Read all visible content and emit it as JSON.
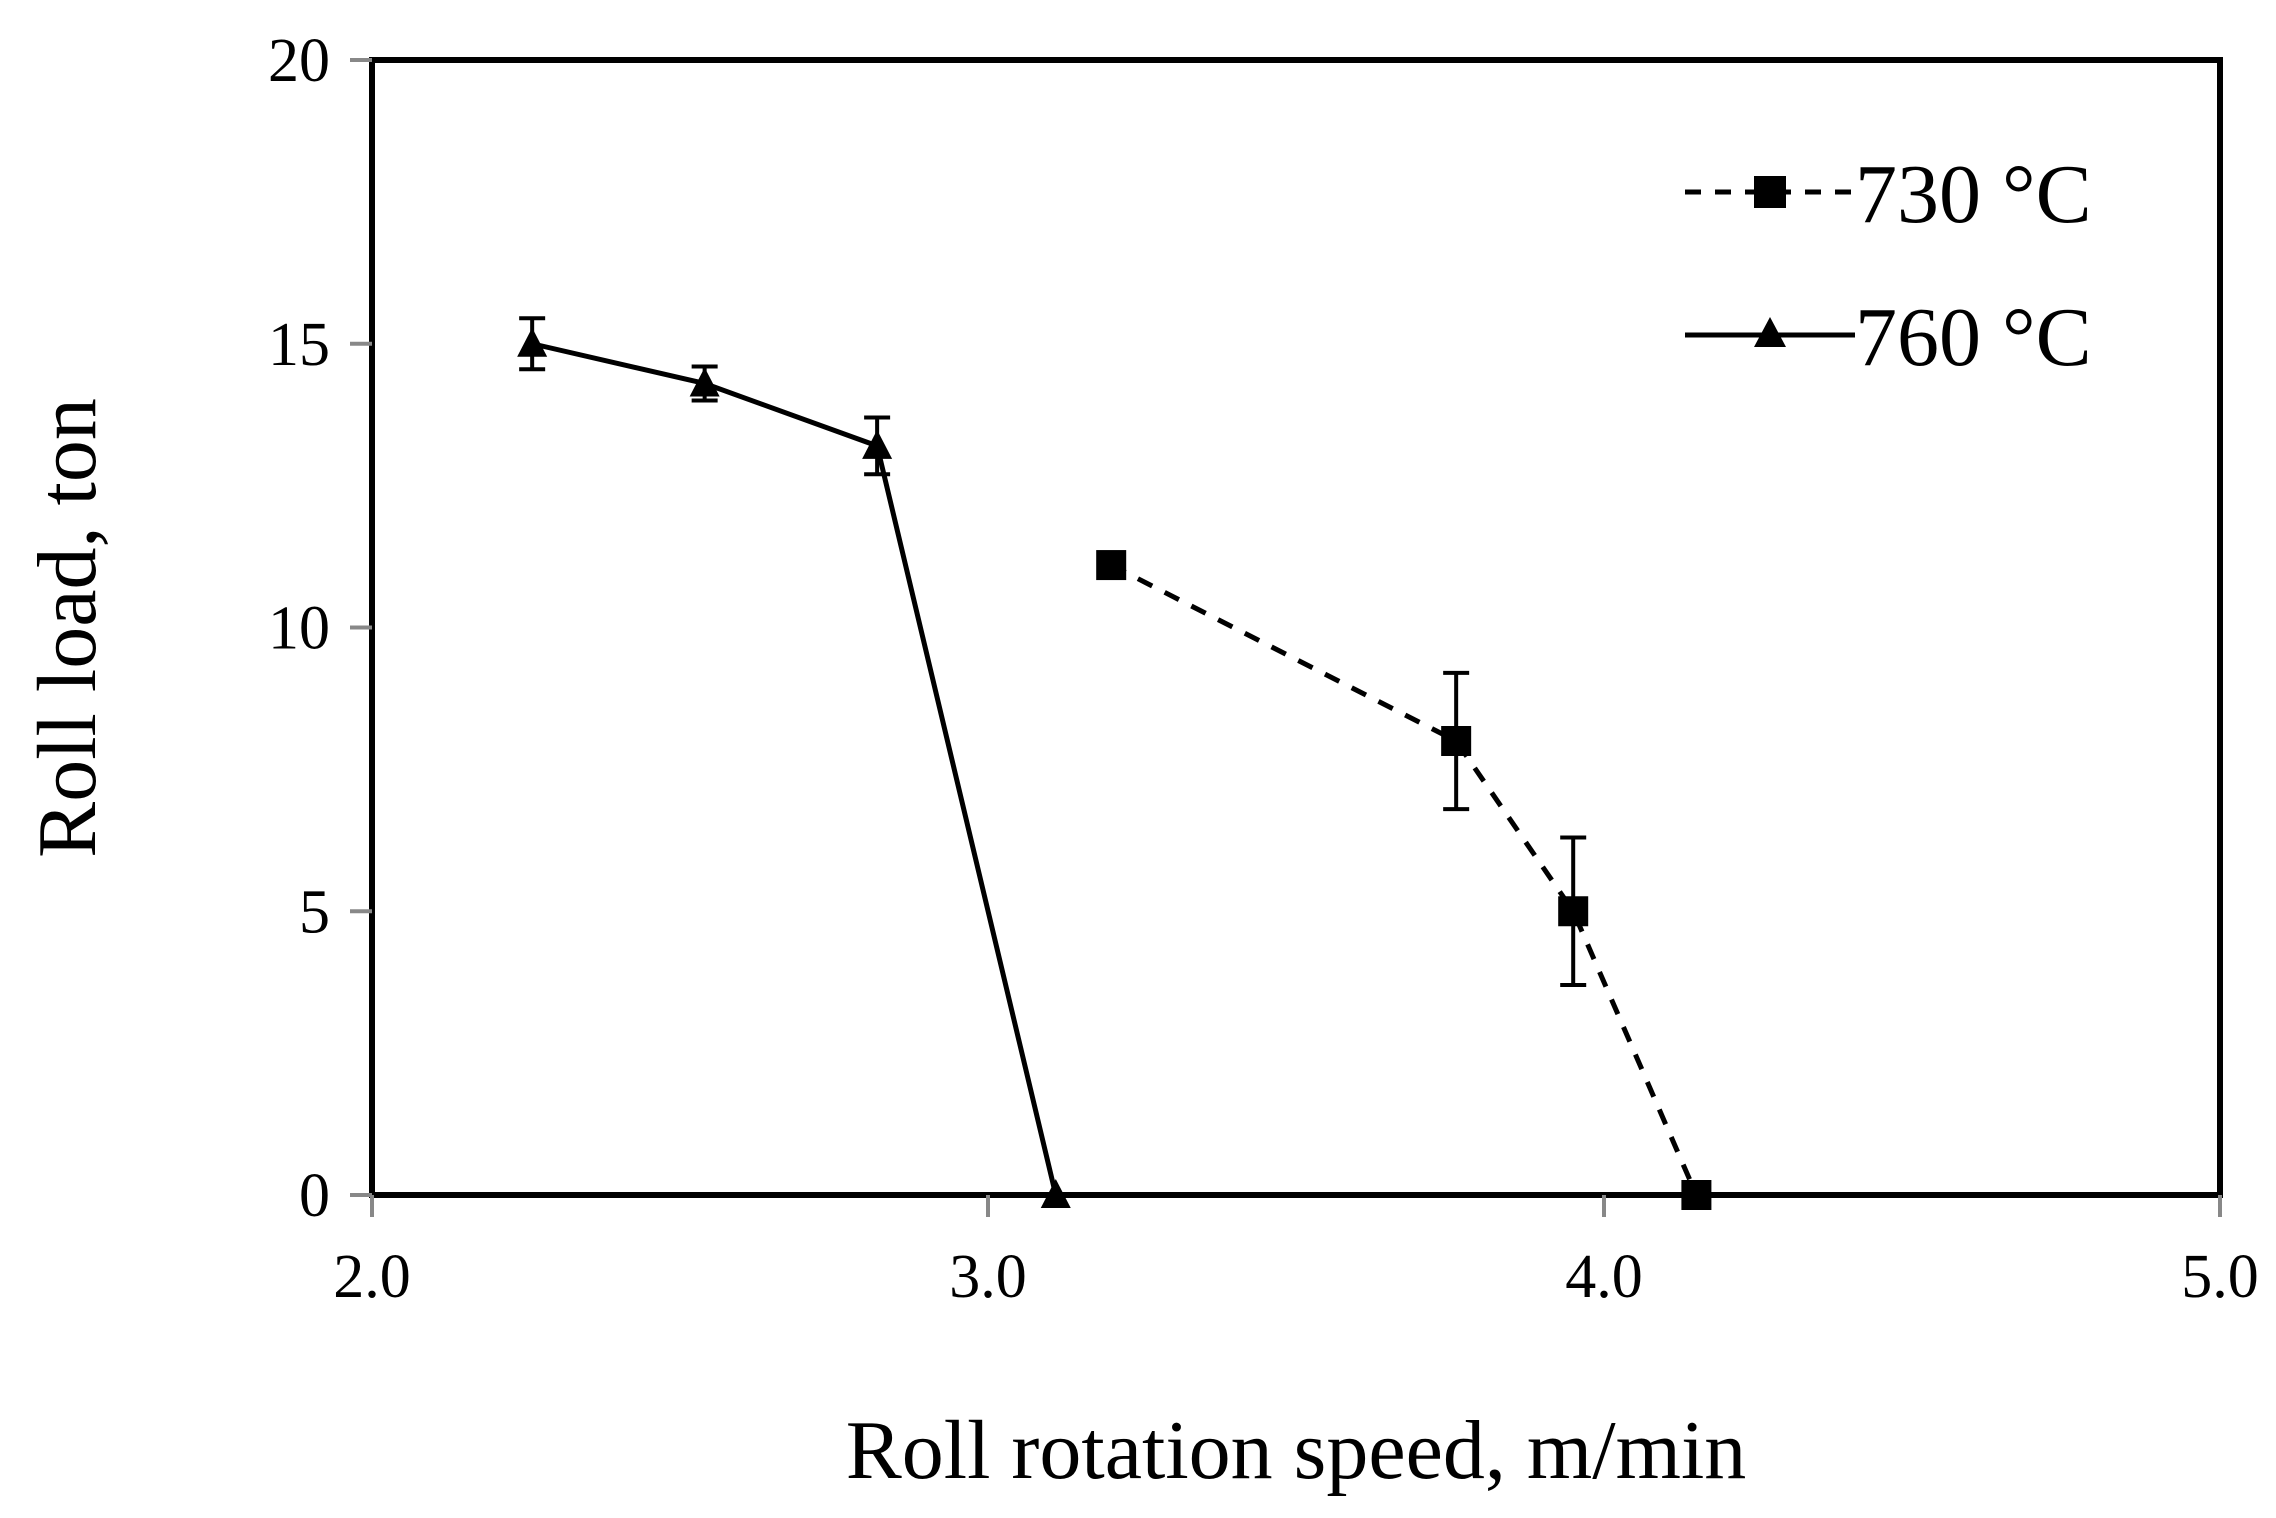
{
  "chart_data": {
    "type": "line",
    "title": "",
    "xlabel": "Roll rotation speed, m/min",
    "ylabel": "Roll load, ton",
    "xlim": [
      2.0,
      5.0
    ],
    "ylim": [
      0,
      20
    ],
    "xticks": [
      "2.0",
      "3.0",
      "4.0",
      "5.0"
    ],
    "yticks": [
      "0",
      "5",
      "10",
      "15",
      "20"
    ],
    "grid": false,
    "legend_position": "top-right",
    "series": [
      {
        "name": "730 °C",
        "line_style": "dashed",
        "marker": "square",
        "color": "#000000",
        "x": [
          3.2,
          3.76,
          3.95,
          4.15
        ],
        "y": [
          11.1,
          8.0,
          5.0,
          0.0
        ],
        "error": [
          0.0,
          1.2,
          1.3,
          0.0
        ]
      },
      {
        "name": "760 °C",
        "line_style": "solid",
        "marker": "triangle",
        "color": "#000000",
        "x": [
          2.26,
          2.54,
          2.82,
          3.11
        ],
        "y": [
          15.0,
          14.3,
          13.2,
          0.0
        ],
        "error": [
          0.45,
          0.3,
          0.5,
          0.0
        ]
      }
    ]
  }
}
